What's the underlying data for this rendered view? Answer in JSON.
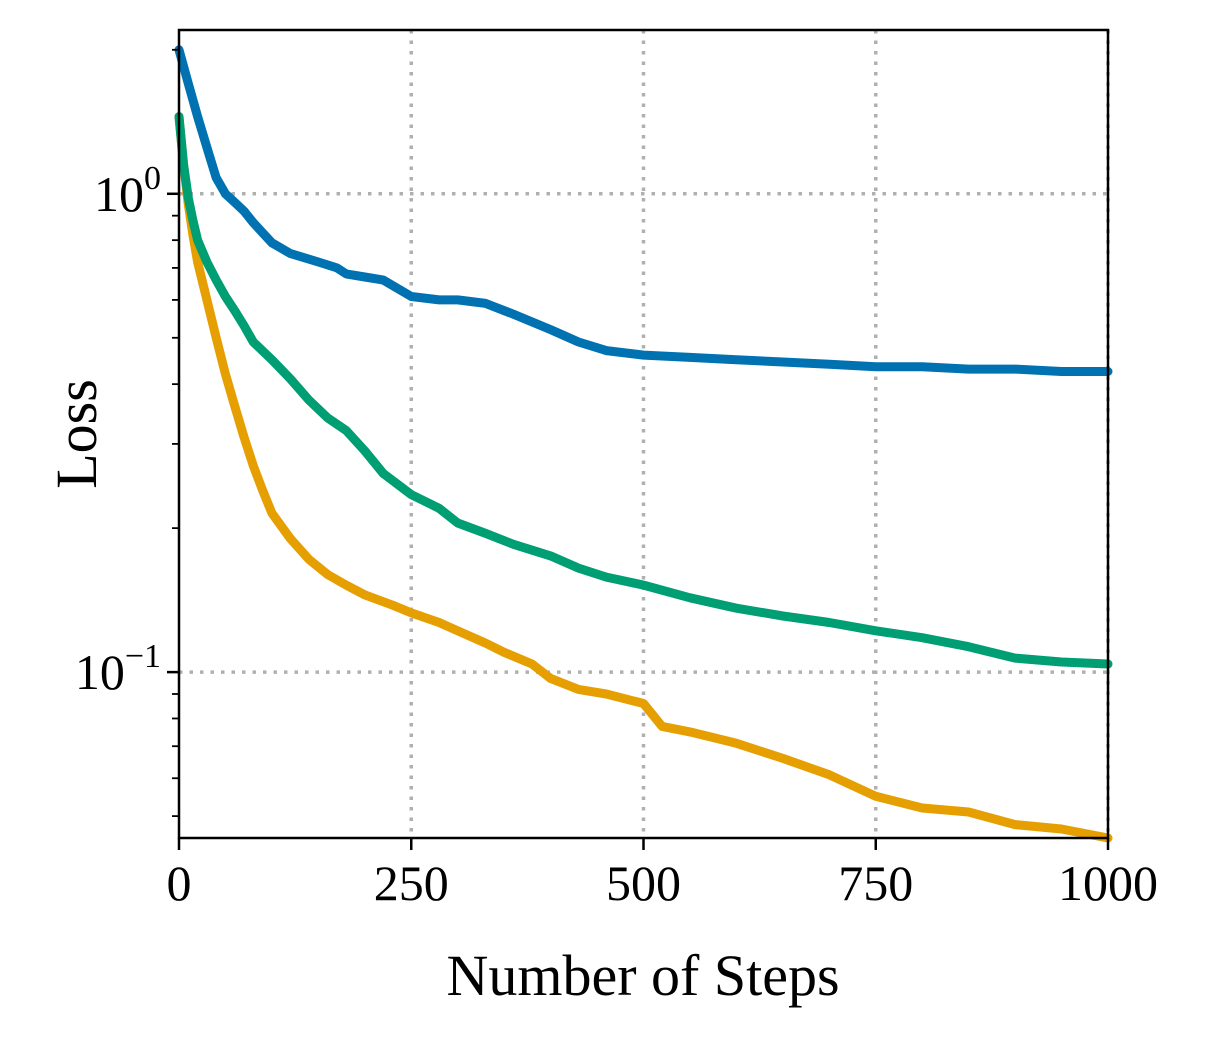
{
  "chart_data": {
    "type": "line",
    "title": "",
    "xlabel": "Number of Steps",
    "ylabel": "Loss",
    "xlim": [
      0,
      1000
    ],
    "ylim": [
      0.045,
      2.2
    ],
    "yscale": "log",
    "grid": true,
    "x_ticks": [
      0,
      250,
      500,
      750,
      1000
    ],
    "x_tick_labels": [
      "0",
      "250",
      "500",
      "750",
      "1000"
    ],
    "y_ticks": [
      {
        "value": 1,
        "base": "10",
        "exp": "0"
      },
      {
        "value": 0.1,
        "base": "10",
        "exp": "−1"
      }
    ],
    "series": [
      {
        "color": "#0072b2",
        "x": [
          0,
          10,
          20,
          30,
          40,
          50,
          60,
          70,
          80,
          100,
          120,
          150,
          170,
          180,
          200,
          220,
          250,
          280,
          300,
          330,
          360,
          400,
          430,
          460,
          500,
          550,
          600,
          650,
          700,
          750,
          800,
          850,
          900,
          950,
          1000
        ],
        "y": [
          2.0,
          1.7,
          1.45,
          1.25,
          1.08,
          1.0,
          0.96,
          0.92,
          0.87,
          0.79,
          0.75,
          0.72,
          0.7,
          0.68,
          0.67,
          0.66,
          0.61,
          0.6,
          0.6,
          0.59,
          0.56,
          0.52,
          0.49,
          0.47,
          0.46,
          0.455,
          0.45,
          0.445,
          0.44,
          0.435,
          0.435,
          0.43,
          0.43,
          0.425,
          0.425
        ]
      },
      {
        "color": "#e69f00",
        "x": [
          0,
          5,
          10,
          15,
          20,
          30,
          40,
          50,
          60,
          70,
          80,
          90,
          100,
          120,
          140,
          160,
          180,
          200,
          230,
          250,
          280,
          300,
          330,
          350,
          380,
          400,
          430,
          460,
          500,
          520,
          550,
          600,
          650,
          700,
          750,
          800,
          850,
          900,
          950,
          1000
        ],
        "y": [
          1.45,
          1.15,
          0.95,
          0.82,
          0.72,
          0.6,
          0.5,
          0.42,
          0.36,
          0.31,
          0.27,
          0.24,
          0.215,
          0.19,
          0.172,
          0.16,
          0.152,
          0.145,
          0.138,
          0.133,
          0.127,
          0.122,
          0.115,
          0.11,
          0.104,
          0.097,
          0.092,
          0.09,
          0.086,
          0.077,
          0.075,
          0.071,
          0.066,
          0.061,
          0.055,
          0.052,
          0.051,
          0.048,
          0.047,
          0.045
        ]
      },
      {
        "color": "#009e73",
        "x": [
          0,
          5,
          10,
          15,
          20,
          30,
          40,
          50,
          60,
          70,
          80,
          100,
          120,
          140,
          160,
          180,
          200,
          220,
          250,
          280,
          300,
          330,
          360,
          400,
          430,
          460,
          500,
          550,
          600,
          650,
          700,
          750,
          800,
          850,
          900,
          950,
          1000
        ],
        "y": [
          1.45,
          1.15,
          0.98,
          0.88,
          0.8,
          0.72,
          0.66,
          0.61,
          0.57,
          0.53,
          0.49,
          0.45,
          0.41,
          0.37,
          0.34,
          0.32,
          0.29,
          0.26,
          0.235,
          0.22,
          0.205,
          0.195,
          0.185,
          0.175,
          0.165,
          0.158,
          0.152,
          0.143,
          0.136,
          0.131,
          0.127,
          0.122,
          0.118,
          0.113,
          0.107,
          0.105,
          0.104
        ]
      }
    ]
  }
}
